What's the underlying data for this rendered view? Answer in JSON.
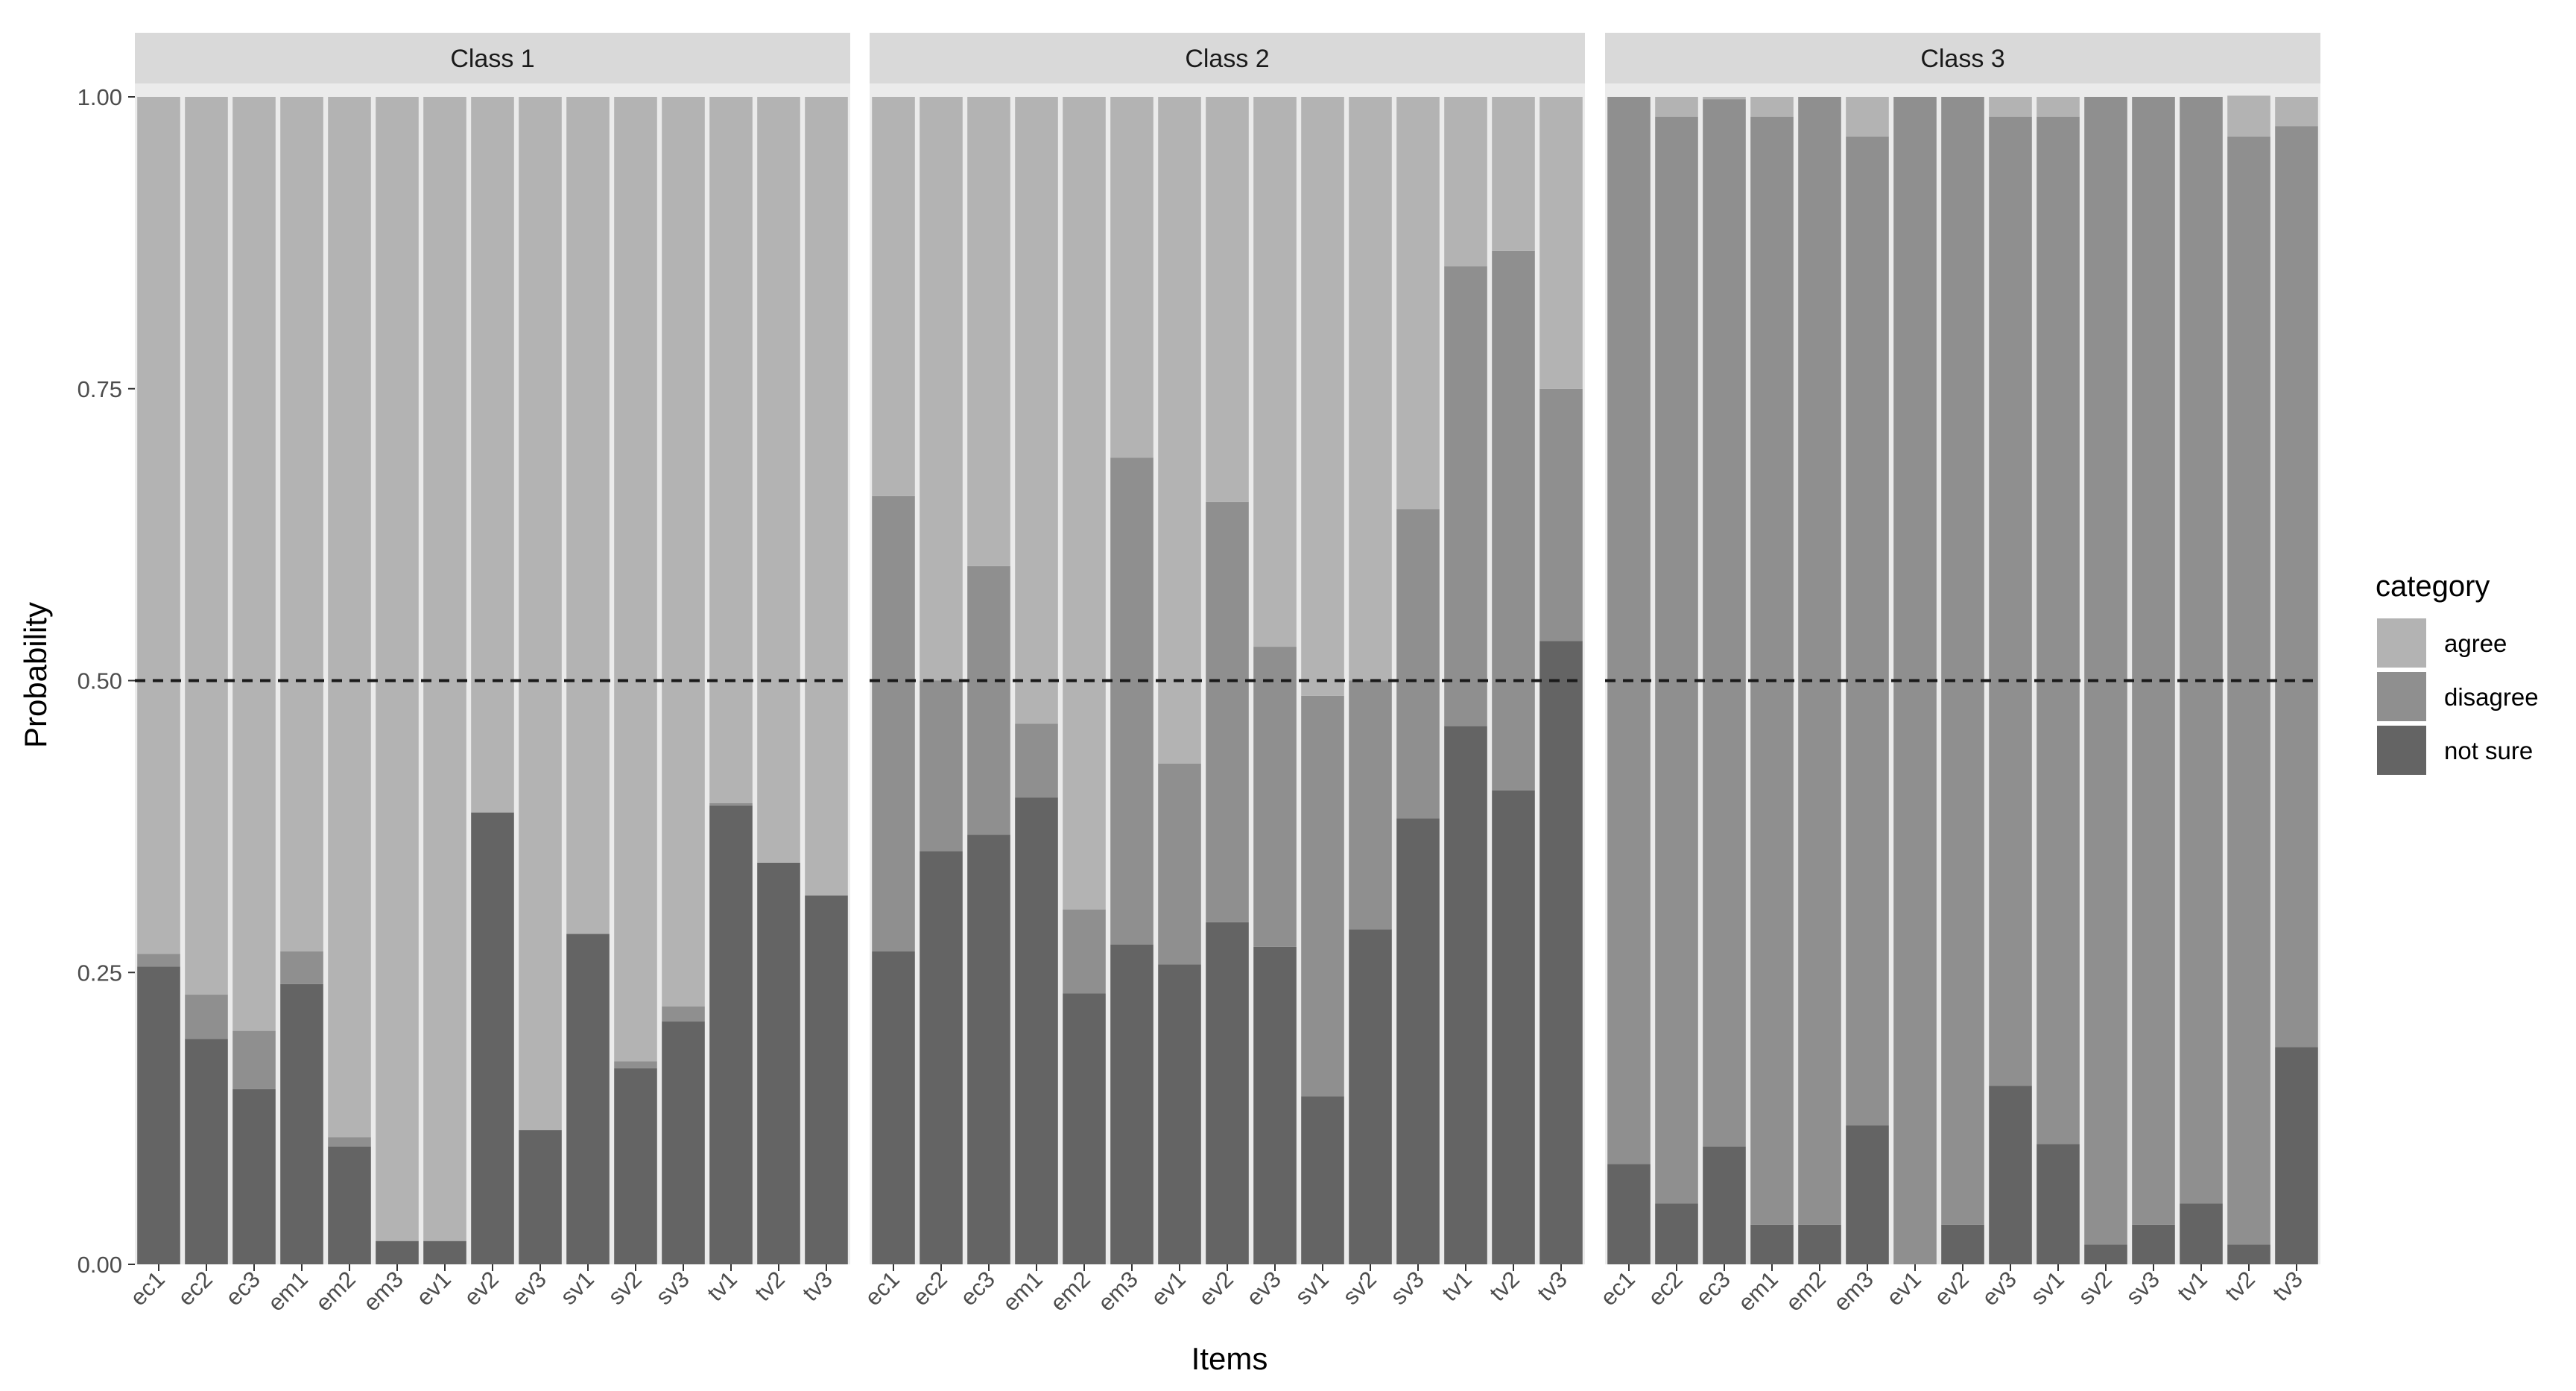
{
  "chart_data": {
    "type": "bar",
    "stacked": true,
    "facets": [
      "Class 1",
      "Class 2",
      "Class 3"
    ],
    "categories": [
      "ec1",
      "ec2",
      "ec3",
      "em1",
      "em2",
      "em3",
      "ev1",
      "ev2",
      "ev3",
      "sv1",
      "sv2",
      "sv3",
      "tv1",
      "tv2",
      "tv3"
    ],
    "xlabel": "Items",
    "ylabel": "Probability",
    "ylim": [
      0,
      1
    ],
    "yticks": [
      "0.00",
      "0.25",
      "0.50",
      "0.75",
      "1.00"
    ],
    "reference_line": 0.5,
    "legend": {
      "title": "category",
      "placement": "right",
      "entries": [
        "agree",
        "disagree",
        "not sure"
      ]
    },
    "colors": {
      "agree": "#b3b3b3",
      "disagree": "#8f8f8f",
      "not sure": "#646464",
      "strip_bg": "#d9d9d9",
      "panel_bg": "#ebebeb"
    },
    "panels": [
      {
        "name": "Class 1",
        "series": [
          {
            "name": "not sure",
            "values": [
              0.255,
              0.193,
              0.15,
              0.24,
              0.101,
              0.02,
              0.02,
              0.387,
              0.115,
              0.283,
              0.168,
              0.208,
              0.393,
              0.344,
              0.316
            ]
          },
          {
            "name": "disagree",
            "values": [
              0.011,
              0.038,
              0.05,
              0.028,
              0.008,
              0.0,
              0.0,
              0.0,
              0.0,
              0.0,
              0.006,
              0.013,
              0.002,
              0.0,
              0.0
            ]
          },
          {
            "name": "agree",
            "values": [
              0.734,
              0.769,
              0.8,
              0.732,
              0.891,
              0.98,
              0.98,
              0.613,
              0.885,
              0.717,
              0.826,
              0.779,
              0.605,
              0.656,
              0.684
            ]
          }
        ]
      },
      {
        "name": "Class 2",
        "series": [
          {
            "name": "not sure",
            "values": [
              0.268,
              0.354,
              0.368,
              0.4,
              0.232,
              0.274,
              0.257,
              0.293,
              0.272,
              0.144,
              0.287,
              0.382,
              0.461,
              0.406,
              0.534
            ]
          },
          {
            "name": "disagree",
            "values": [
              0.39,
              0.146,
              0.23,
              0.063,
              0.072,
              0.417,
              0.172,
              0.36,
              0.257,
              0.343,
              0.213,
              0.265,
              0.394,
              0.462,
              0.216
            ]
          },
          {
            "name": "agree",
            "values": [
              0.342,
              0.5,
              0.402,
              0.537,
              0.696,
              0.309,
              0.571,
              0.347,
              0.471,
              0.513,
              0.5,
              0.353,
              0.145,
              0.132,
              0.25
            ]
          }
        ]
      },
      {
        "name": "Class 3",
        "series": [
          {
            "name": "not sure",
            "values": [
              0.086,
              0.052,
              0.101,
              0.034,
              0.034,
              0.119,
              0.0,
              0.034,
              0.153,
              0.103,
              0.017,
              0.034,
              0.052,
              0.017,
              0.186
            ]
          },
          {
            "name": "disagree",
            "values": [
              0.914,
              0.931,
              0.897,
              0.949,
              0.966,
              0.847,
              1.0,
              0.966,
              0.83,
              0.88,
              0.983,
              0.966,
              0.948,
              0.949,
              0.789
            ]
          },
          {
            "name": "agree",
            "values": [
              0.0,
              0.017,
              0.002,
              0.017,
              0.0,
              0.034,
              0.0,
              0.0,
              0.017,
              0.017,
              0.0,
              0.0,
              0.0,
              0.035,
              0.025
            ]
          }
        ]
      }
    ]
  }
}
